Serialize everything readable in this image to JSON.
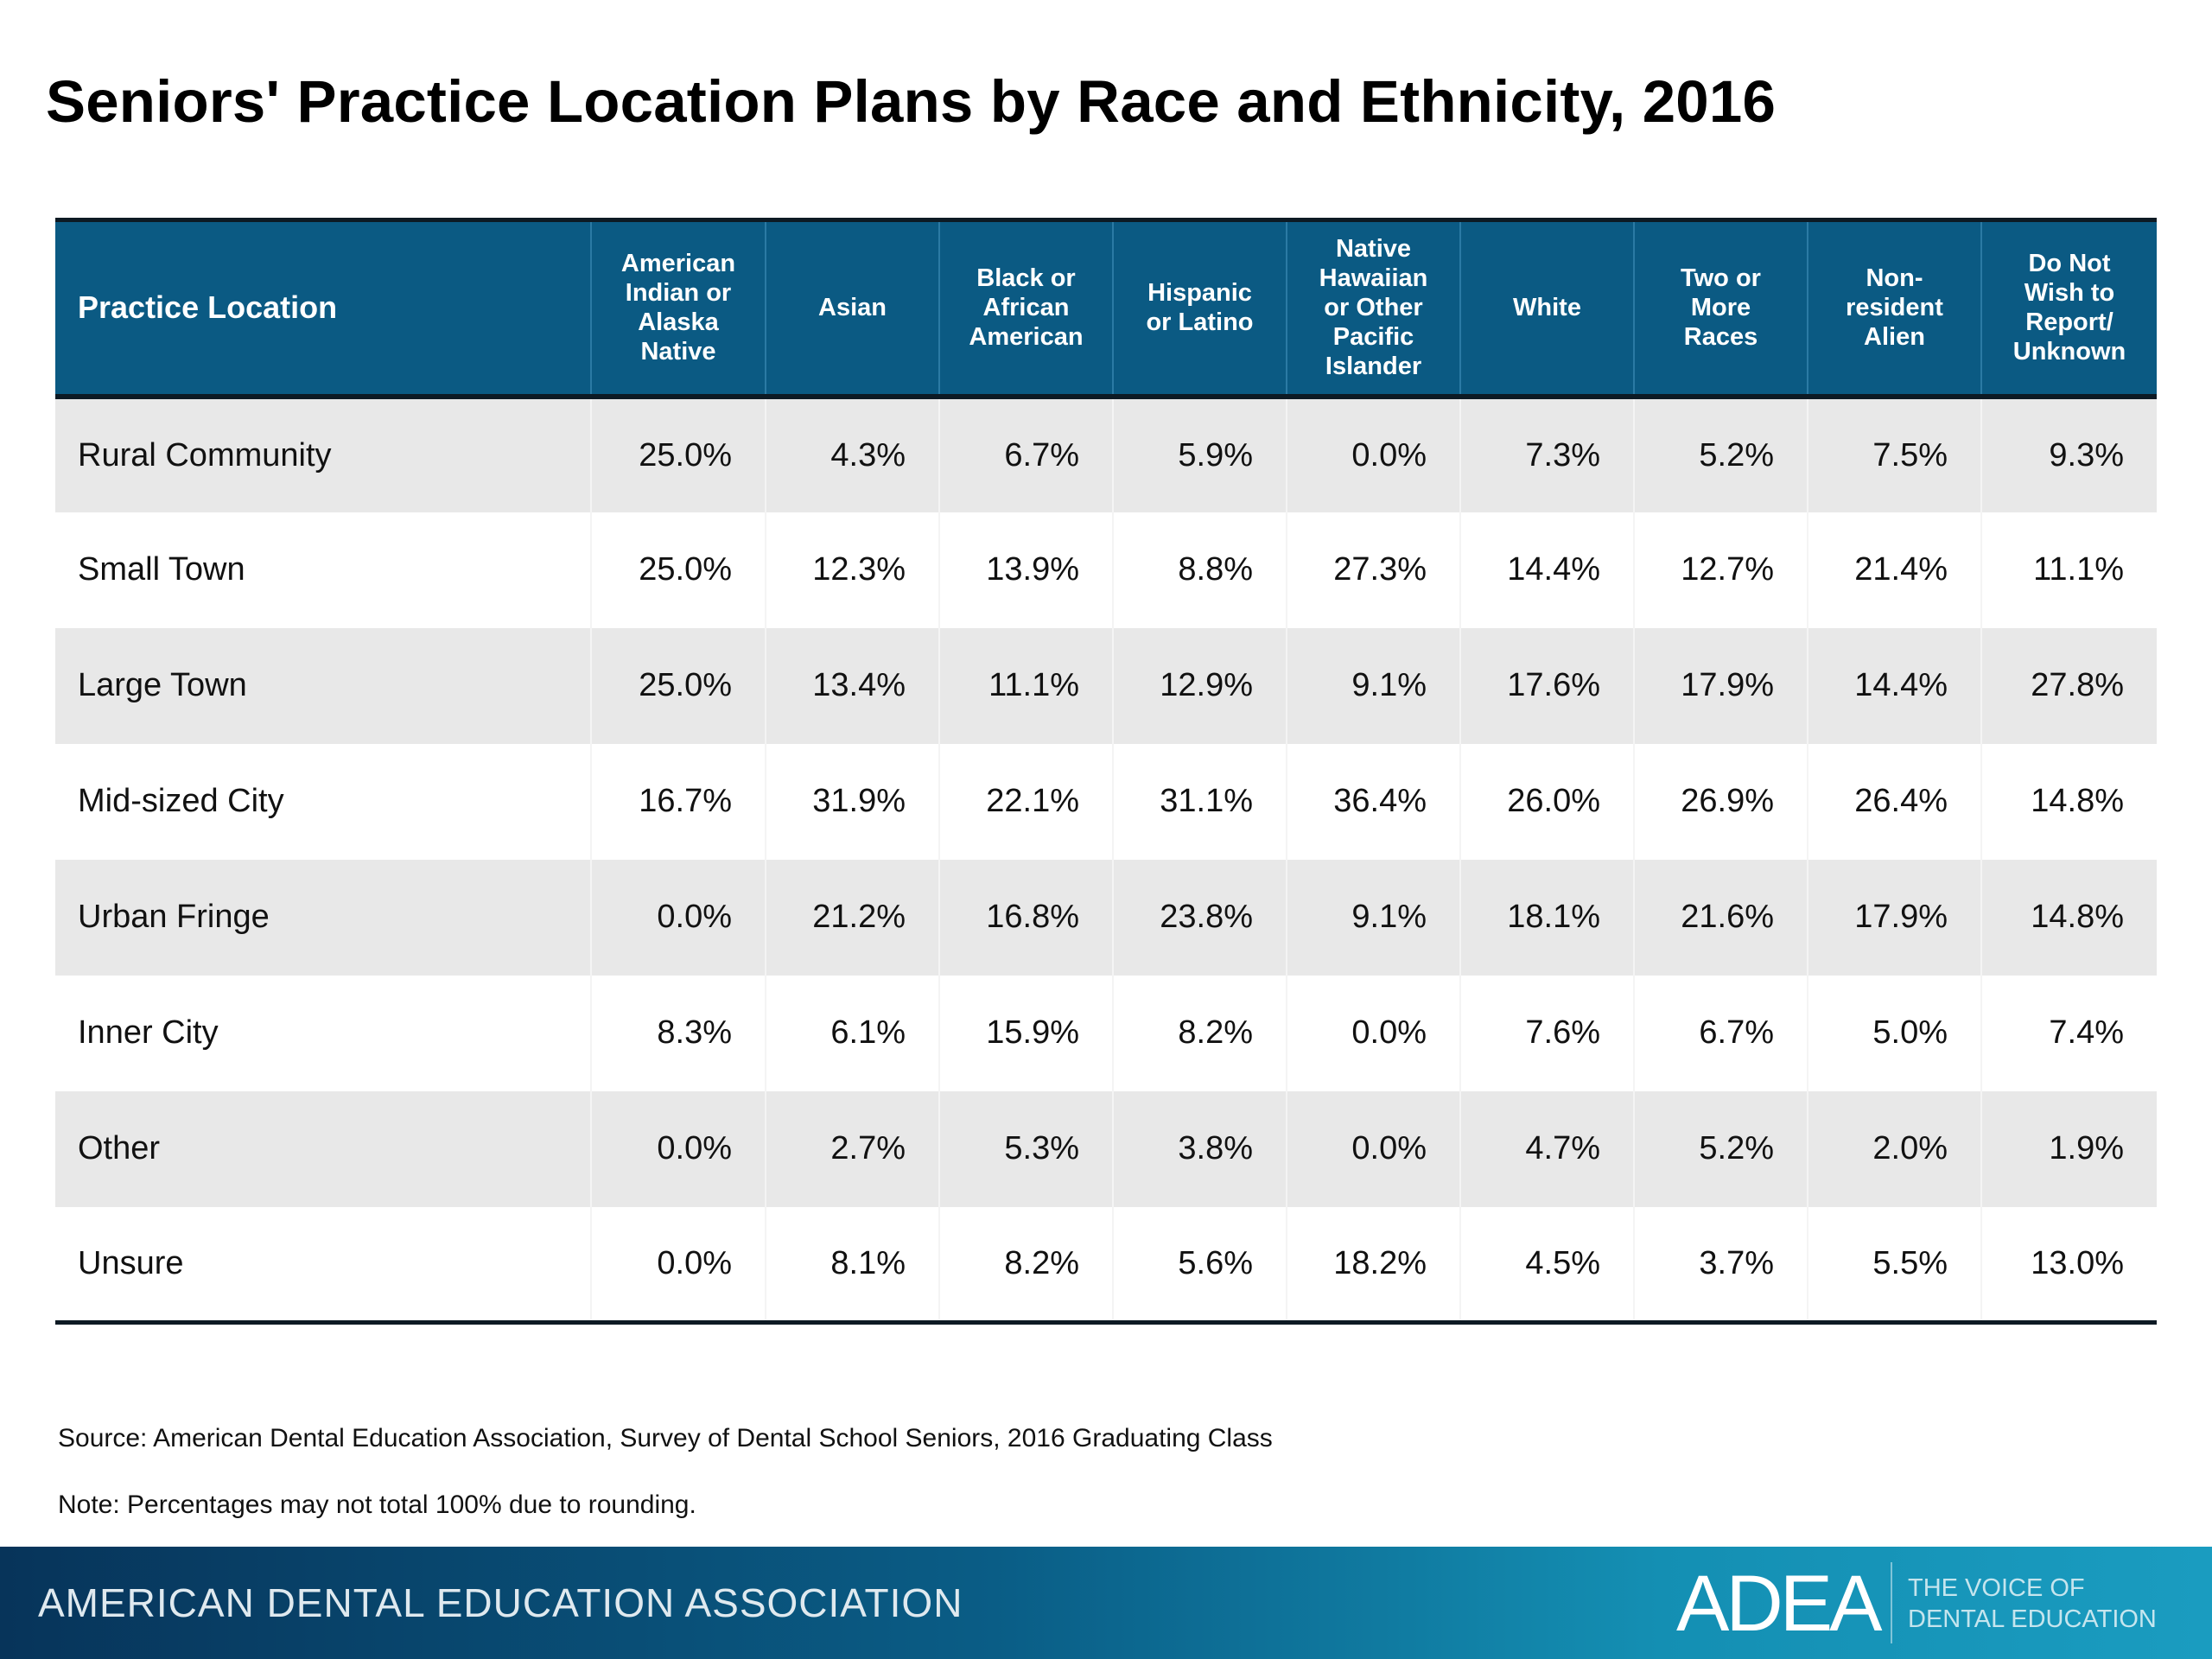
{
  "title": "Seniors' Practice Location Plans by Race and Ethnicity, 2016",
  "table": {
    "headers": [
      "Practice Location",
      "American\nIndian or\nAlaska\nNative",
      "Asian",
      "Black or\nAfrican\nAmerican",
      "Hispanic\nor Latino",
      "Native\nHawaiian\nor Other\nPacific\nIslander",
      "White",
      "Two or\nMore\nRaces",
      "Non-\nresident\nAlien",
      "Do Not\nWish to\nReport/\nUnknown"
    ],
    "rows": [
      [
        "Rural Community",
        "25.0%",
        "4.3%",
        "6.7%",
        "5.9%",
        "0.0%",
        "7.3%",
        "5.2%",
        "7.5%",
        "9.3%"
      ],
      [
        "Small Town",
        "25.0%",
        "12.3%",
        "13.9%",
        "8.8%",
        "27.3%",
        "14.4%",
        "12.7%",
        "21.4%",
        "11.1%"
      ],
      [
        "Large Town",
        "25.0%",
        "13.4%",
        "11.1%",
        "12.9%",
        "9.1%",
        "17.6%",
        "17.9%",
        "14.4%",
        "27.8%"
      ],
      [
        "Mid-sized City",
        "16.7%",
        "31.9%",
        "22.1%",
        "31.1%",
        "36.4%",
        "26.0%",
        "26.9%",
        "26.4%",
        "14.8%"
      ],
      [
        "Urban Fringe",
        "0.0%",
        "21.2%",
        "16.8%",
        "23.8%",
        "9.1%",
        "18.1%",
        "21.6%",
        "17.9%",
        "14.8%"
      ],
      [
        "Inner City",
        "8.3%",
        "6.1%",
        "15.9%",
        "8.2%",
        "0.0%",
        "7.6%",
        "6.7%",
        "5.0%",
        "7.4%"
      ],
      [
        "Other",
        "0.0%",
        "2.7%",
        "5.3%",
        "3.8%",
        "0.0%",
        "4.7%",
        "5.2%",
        "2.0%",
        "1.9%"
      ],
      [
        "Unsure",
        "0.0%",
        "8.1%",
        "8.2%",
        "5.6%",
        "18.2%",
        "4.5%",
        "3.7%",
        "5.5%",
        "13.0%"
      ]
    ]
  },
  "source": "Source: American Dental Education Association, Survey of Dental School Seniors, 2016 Graduating Class",
  "note": "Note: Percentages may not total 100% due to rounding.",
  "footer": {
    "org_name": "AMERICAN DENTAL EDUCATION ASSOCIATION",
    "logo_text": "ADEA",
    "tagline_line1": "THE VOICE OF",
    "tagline_line2": "DENTAL EDUCATION"
  },
  "colors": {
    "header_bg": "#0b5a83",
    "row_alt": "#e8e8e8",
    "footer_start": "#07345a",
    "footer_end": "#1a9cc0"
  }
}
